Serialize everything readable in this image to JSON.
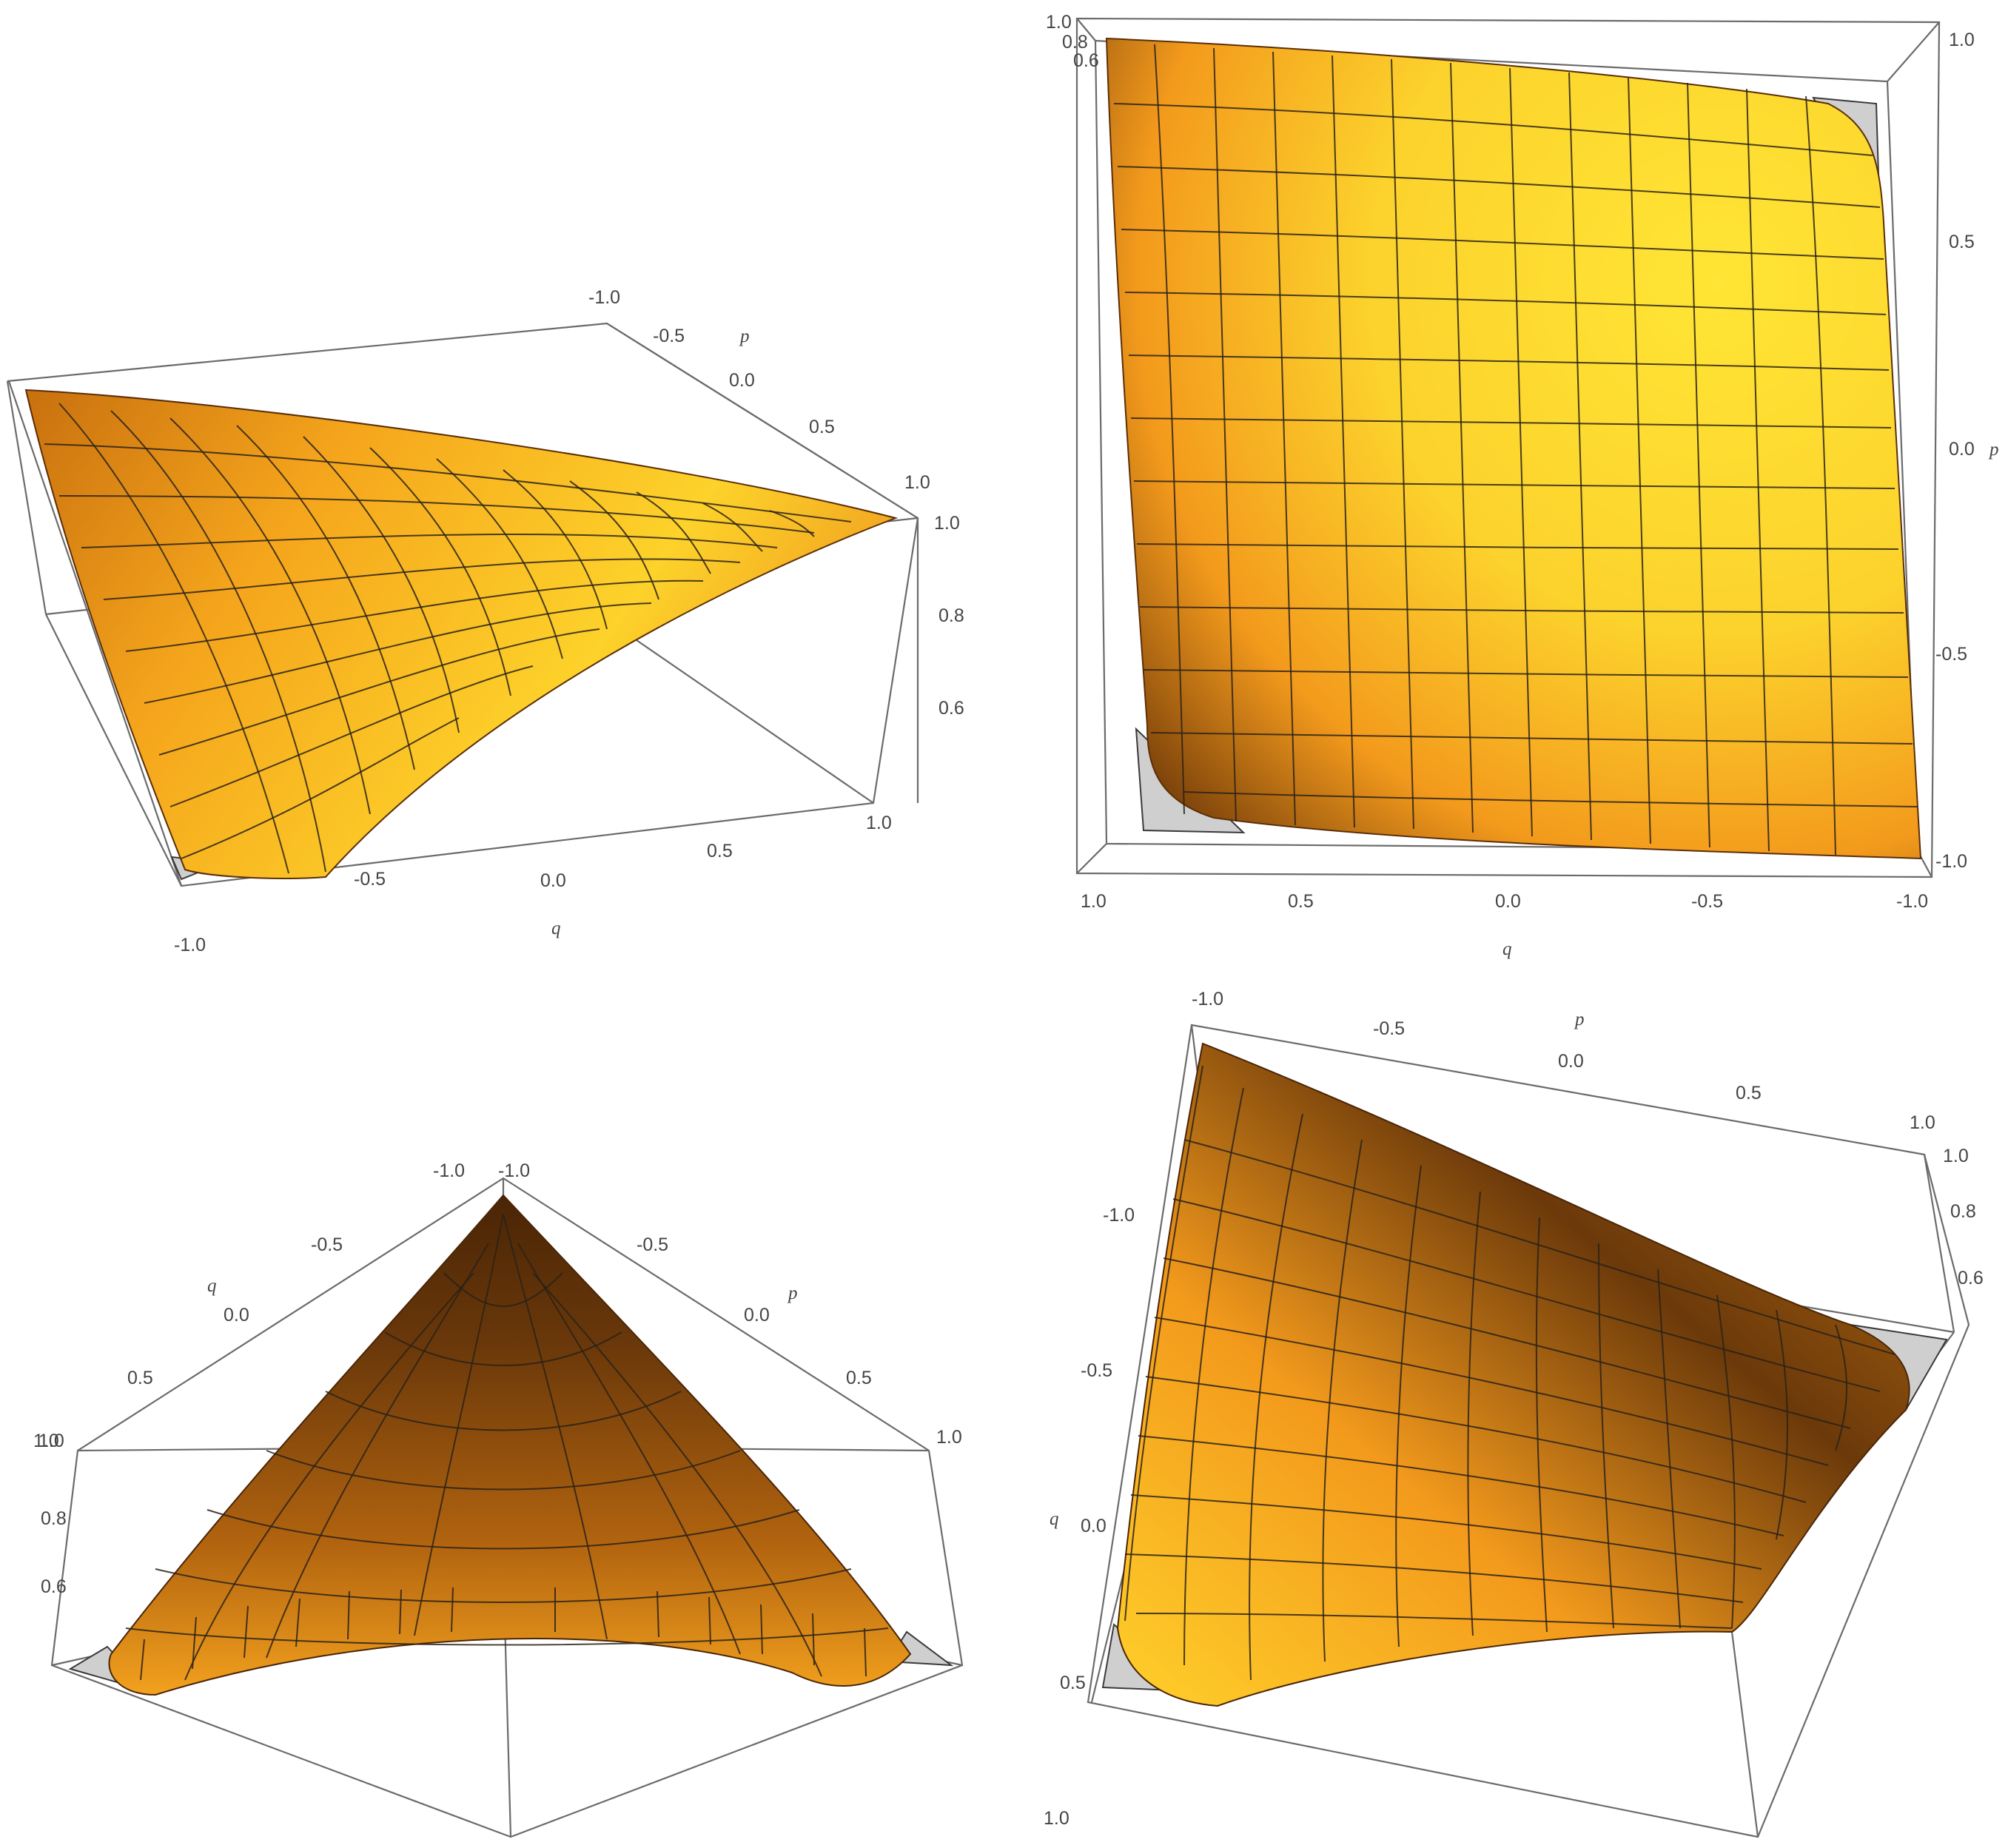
{
  "axes": {
    "q_label": "q",
    "p_label": "p"
  },
  "colors": {
    "surface_light": "#ffe030",
    "surface_mid": "#f5a51c",
    "surface_dark": "#5a2e08",
    "floor": "#cfcfcf",
    "frame": "#6b6b6b"
  },
  "panels": [
    {
      "id": "top-left",
      "q_ticks": [
        "-1.0",
        "-0.5",
        "0.0",
        "0.5",
        "1.0"
      ],
      "p_ticks": [
        "-1.0",
        "-0.5",
        "0.0",
        "0.5",
        "1.0"
      ],
      "z_ticks": [
        "1.0",
        "0.8",
        "0.6"
      ]
    },
    {
      "id": "top-right",
      "q_ticks": [
        "1.0",
        "0.5",
        "0.0",
        "-0.5",
        "-1.0"
      ],
      "p_ticks": [
        "1.0",
        "0.5",
        "0.0",
        "-0.5",
        "-1.0"
      ],
      "z_ticks": [
        "1.0",
        "0.8",
        "0.6"
      ]
    },
    {
      "id": "bottom-left",
      "q_ticks": [
        "-1.0",
        "-0.5",
        "0.0",
        "0.5",
        "1.0"
      ],
      "p_ticks": [
        "-1.0",
        "-0.5",
        "0.0",
        "0.5",
        "1.0"
      ],
      "z_ticks": [
        "1.0",
        "0.8",
        "0.6"
      ]
    },
    {
      "id": "bottom-right",
      "q_ticks": [
        "-1.0",
        "-0.5",
        "0.0",
        "0.5",
        "1.0"
      ],
      "p_ticks": [
        "-1.0",
        "-0.5",
        "0.0",
        "0.5",
        "1.0"
      ],
      "z_ticks": [
        "1.0",
        "0.8",
        "0.6"
      ]
    }
  ]
}
